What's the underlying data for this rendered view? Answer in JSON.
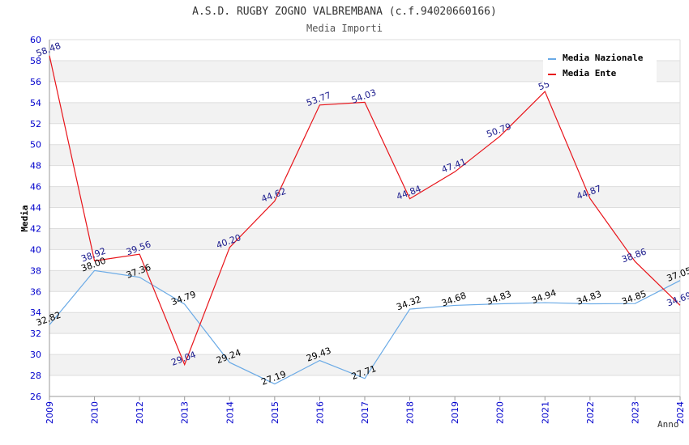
{
  "chart_data": {
    "type": "line",
    "title": "A.S.D. RUGBY ZOGNO VALBREMBANA (c.f.94020660166)",
    "subtitle": "Media Importi",
    "xlabel": "Anno",
    "ylabel": "Media",
    "ylim": [
      26,
      60
    ],
    "ytick_step": 2,
    "grid": true,
    "legend_position": "top-right",
    "categories": [
      "2009",
      "2010",
      "2012",
      "2013",
      "2014",
      "2015",
      "2016",
      "2017",
      "2018",
      "2019",
      "2020",
      "2021",
      "2022",
      "2023",
      "2024"
    ],
    "series": [
      {
        "name": "Media Nazionale",
        "color": "#6aaae6",
        "values": [
          32.82,
          38.0,
          37.36,
          34.79,
          29.24,
          27.19,
          29.43,
          27.71,
          34.32,
          34.68,
          34.83,
          34.94,
          34.83,
          34.85,
          37.05
        ],
        "labels": [
          "32.82",
          "38.00",
          "37.36",
          "34.79",
          "29.24",
          "27.19",
          "29.43",
          "27.71",
          "34.32",
          "34.68",
          "34.83",
          "34.94",
          "34.83",
          "34.85",
          "37.05"
        ],
        "label_color": "#000000"
      },
      {
        "name": "Media Ente",
        "color": "#e8141a",
        "values": [
          58.48,
          38.92,
          39.56,
          29.04,
          40.2,
          44.62,
          53.77,
          54.03,
          44.84,
          47.41,
          50.79,
          55.06,
          44.87,
          38.86,
          34.69
        ],
        "labels": [
          "58.48",
          "38.92",
          "39.56",
          "29.04",
          "40.20",
          "44.62",
          "53.77",
          "54.03",
          "44.84",
          "47.41",
          "50.79",
          "55",
          "44.87",
          "38.86",
          "34.69"
        ],
        "label_color": "#1a1a8c"
      }
    ],
    "colors": {
      "axis_text": "#0000cc",
      "band": "#f2f2f2",
      "grid": "#dddddd"
    }
  }
}
